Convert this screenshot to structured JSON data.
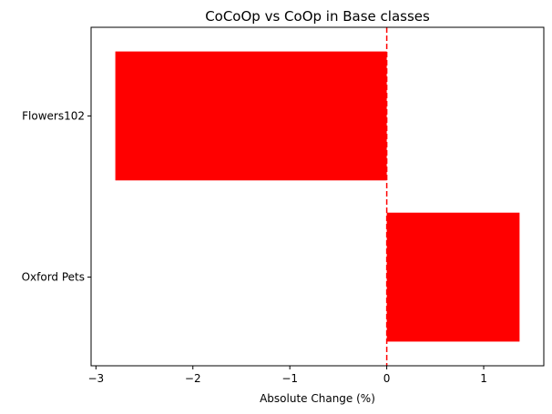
{
  "chart_data": {
    "type": "bar",
    "orientation": "horizontal",
    "title": "CoCoOp vs CoOp in Base classes",
    "xlabel": "Absolute Change (%)",
    "ylabel": "",
    "categories": [
      "Flowers102",
      "Oxford Pets"
    ],
    "values": [
      -2.8,
      1.37
    ],
    "xlim": [
      -3.05,
      1.62
    ],
    "xticks": [
      -3,
      -2,
      -1,
      0,
      1
    ],
    "xtick_labels": [
      "−3",
      "−2",
      "−1",
      "0",
      "1"
    ],
    "reference_line": {
      "x": 0,
      "style": "dashed",
      "color": "#ff0000"
    },
    "bar_color": "#ff0000",
    "grid": false,
    "legend": "none"
  }
}
